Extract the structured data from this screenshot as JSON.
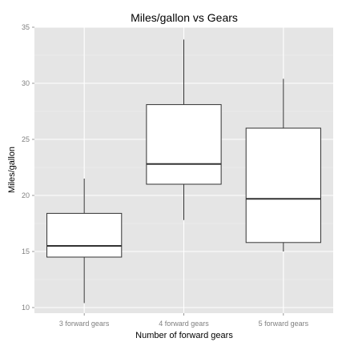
{
  "chart_data": {
    "type": "boxplot",
    "title": "Miles/gallon vs Gears",
    "xlabel": "Number of forward gears",
    "ylabel": "Miles/gallon",
    "ylim": [
      9.5,
      35
    ],
    "yticks": [
      10,
      15,
      20,
      25,
      30,
      35
    ],
    "grid": true,
    "categories": [
      "3 forward gears",
      "4 forward gears",
      "5 forward gears"
    ],
    "boxes": [
      {
        "min": 10.4,
        "q1": 14.5,
        "median": 15.5,
        "q3": 18.4,
        "max": 21.5
      },
      {
        "min": 17.8,
        "q1": 21.0,
        "median": 22.8,
        "q3": 28.1,
        "max": 33.9
      },
      {
        "min": 15.0,
        "q1": 15.8,
        "median": 19.7,
        "q3": 26.0,
        "max": 30.4
      }
    ],
    "colors": {
      "panel": "#e5e5e5",
      "grid_major": "#ffffff",
      "grid_minor": "#f2f2f2",
      "box_fill": "#ffffff",
      "box_stroke": "#333333",
      "median": "#333333"
    }
  }
}
